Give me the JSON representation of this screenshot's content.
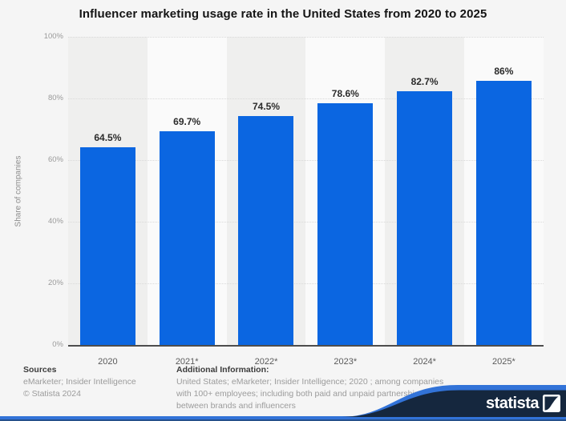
{
  "title": "Influencer marketing usage rate in the United States from 2020 to 2025",
  "chart_data": {
    "type": "bar",
    "categories": [
      "2020",
      "2021*",
      "2022*",
      "2023*",
      "2024*",
      "2025*"
    ],
    "values": [
      64.5,
      69.7,
      74.5,
      78.6,
      82.7,
      86
    ],
    "value_labels": [
      "64.5%",
      "69.7%",
      "74.5%",
      "78.6%",
      "82.7%",
      "86%"
    ],
    "title": "Influencer marketing usage rate in the United States from 2020 to 2025",
    "xlabel": "",
    "ylabel": "Share of companies",
    "ylim": [
      0,
      100
    ],
    "yticks": [
      "0%",
      "20%",
      "40%",
      "60%",
      "80%",
      "100%"
    ],
    "grid": "horizontal-dotted",
    "legend": "none",
    "bar_color": "#0b66e1"
  },
  "footer": {
    "sources_label": "Sources",
    "sources_line1": "eMarketer; Insider Intelligence",
    "sources_line2": "© Statista 2024",
    "additional_label": "Additional Information:",
    "additional_line1": "United States; eMarketer; Insider Intelligence; 2020 ; among companies",
    "additional_line2": "with 100+ employees; including both paid and unpaid partnerships",
    "additional_line3": "between brands and influencers"
  },
  "branding": {
    "logo_text": "statista",
    "navy_color": "#15273e",
    "blue_color": "#3273d8"
  }
}
